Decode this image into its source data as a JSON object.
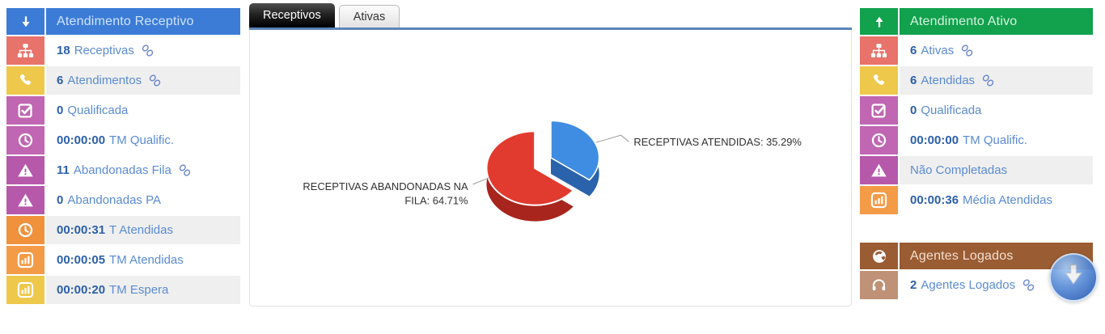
{
  "left_panel": {
    "header": {
      "label": "Atendimento Receptivo",
      "icon": "arrow-down",
      "bg": "#3c7cd6",
      "text_color": "#cfe4fb"
    },
    "rows": [
      {
        "icon": "sitemap",
        "icon_bg": "#e7736a",
        "value": "18",
        "label": "Receptivas",
        "link": true,
        "shaded": false
      },
      {
        "icon": "phone",
        "icon_bg": "#eec84b",
        "value": "6",
        "label": "Atendimentos",
        "link": true,
        "shaded": true
      },
      {
        "icon": "check-square",
        "icon_bg": "#c066b2",
        "value": "0",
        "label": "Qualificada",
        "link": false,
        "shaded": false
      },
      {
        "icon": "clock",
        "icon_bg": "#c066b2",
        "value": "00:00:00",
        "label": "TM Qualific.",
        "link": false,
        "shaded": false
      },
      {
        "icon": "warning",
        "icon_bg": "#b659ab",
        "value": "11",
        "label": "Abandonadas Fila",
        "link": true,
        "shaded": false
      },
      {
        "icon": "warning",
        "icon_bg": "#b659ab",
        "value": "0",
        "label": "Abandonadas PA",
        "link": false,
        "shaded": false
      },
      {
        "icon": "clock",
        "icon_bg": "#f0913c",
        "value": "00:00:31",
        "label": "T Atendidas",
        "link": false,
        "shaded": true
      },
      {
        "icon": "bar-chart",
        "icon_bg": "#f49b47",
        "value": "00:00:05",
        "label": "TM Atendidas",
        "link": false,
        "shaded": false
      },
      {
        "icon": "bar-chart",
        "icon_bg": "#eec84b",
        "value": "00:00:20",
        "label": "TM Espera",
        "link": false,
        "shaded": true
      }
    ]
  },
  "right_panel": {
    "header": {
      "label": "Atendimento Ativo",
      "icon": "arrow-up",
      "bg": "#12a14d",
      "text_color": "#d6f3e0"
    },
    "rows": [
      {
        "icon": "sitemap",
        "icon_bg": "#e7736a",
        "value": "6",
        "label": "Ativas",
        "link": true,
        "shaded": false
      },
      {
        "icon": "phone",
        "icon_bg": "#eec84b",
        "value": "6",
        "label": "Atendidas",
        "link": true,
        "shaded": true
      },
      {
        "icon": "check-square",
        "icon_bg": "#c066b2",
        "value": "0",
        "label": "Qualificada",
        "link": false,
        "shaded": false
      },
      {
        "icon": "clock",
        "icon_bg": "#c066b2",
        "value": "00:00:00",
        "label": "TM Qualific.",
        "link": false,
        "shaded": false
      },
      {
        "icon": "warning",
        "icon_bg": "#b659ab",
        "value": "",
        "label": "Não Completadas",
        "link": false,
        "shaded": true
      },
      {
        "icon": "bar-chart",
        "icon_bg": "#f49b47",
        "value": "00:00:36",
        "label": "Média Atendidas",
        "link": false,
        "shaded": false
      }
    ]
  },
  "agents_panel": {
    "header": {
      "label": "Agentes Logados",
      "icon": "globe",
      "bg": "#9a5c33",
      "text_color": "#f4dfd0"
    },
    "rows": [
      {
        "icon": "headset",
        "icon_bg": "#bf9176",
        "value": "2",
        "label": "Agentes Logados",
        "link": true,
        "shaded": false
      }
    ]
  },
  "tabs": [
    {
      "label": "Receptivos",
      "active": true
    },
    {
      "label": "Ativas",
      "active": false
    }
  ],
  "chart_data": {
    "type": "pie",
    "style": "3d-exploded",
    "title": "",
    "legend": false,
    "slices": [
      {
        "label": "RECEPTIVAS ATENDIDAS",
        "value": 35.29,
        "color": "#3f8de2",
        "side_color": "#2a63ab",
        "exploded": true
      },
      {
        "label": "RECEPTIVAS ABANDONADAS NA FILA",
        "value": 64.71,
        "color": "#e13b2f",
        "side_color": "#a8251d",
        "exploded": false
      }
    ],
    "label_right": "RECEPTIVAS ATENDIDAS: 35.29%",
    "label_left_line1": "RECEPTIVAS ABANDONADAS NA",
    "label_left_line2": "FILA: 64.71%"
  },
  "scroll_button": {
    "icon": "arrow-down"
  }
}
